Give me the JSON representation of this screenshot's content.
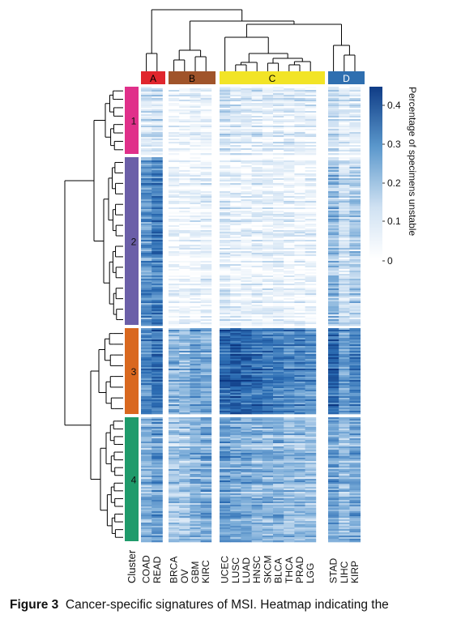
{
  "figure": {
    "caption_label": "Figure 3",
    "caption_text": "Cancer-specific signatures of MSI. Heatmap indicating the"
  },
  "groups": [
    {
      "label": "A",
      "color": "#e0262d"
    },
    {
      "label": "B",
      "color": "#a0542a"
    },
    {
      "label": "C",
      "color": "#f2e426"
    },
    {
      "label": "D",
      "color": "#2f6fb0"
    }
  ],
  "clusters": [
    {
      "label": "1",
      "color": "#e0308a"
    },
    {
      "label": "2",
      "color": "#6b5fa8"
    },
    {
      "label": "3",
      "color": "#d9681f"
    },
    {
      "label": "4",
      "color": "#1f9b6b"
    }
  ],
  "columns": [
    "COAD",
    "READ",
    "BRCA",
    "OV",
    "GBM",
    "KIRC",
    "UCEC",
    "LUSC",
    "LUAD",
    "HNSC",
    "SKCM",
    "BLCA",
    "THCA",
    "PRAD",
    "LGG",
    "STAD",
    "LIHC",
    "KIRP"
  ],
  "row_header": "Cluster",
  "colorbar": {
    "title": "Percentage of specimens unstable",
    "ticks": [
      "0.4",
      "0.3",
      "0.2",
      "0.1",
      "0"
    ],
    "low_color": "#ffffff",
    "high_color": "#0f3c86"
  },
  "chart_data": {
    "type": "heatmap",
    "title": "",
    "xlabel": "",
    "ylabel": "Cluster",
    "value_label": "Percentage of specimens unstable",
    "value_range": [
      0,
      0.45
    ],
    "columns": [
      "COAD",
      "READ",
      "BRCA",
      "OV",
      "GBM",
      "KIRC",
      "UCEC",
      "LUSC",
      "LUAD",
      "HNSC",
      "SKCM",
      "BLCA",
      "THCA",
      "PRAD",
      "LGG",
      "STAD",
      "LIHC",
      "KIRP"
    ],
    "column_groups": {
      "A": [
        "COAD",
        "READ"
      ],
      "B": [
        "BRCA",
        "OV",
        "GBM",
        "KIRC"
      ],
      "C": [
        "UCEC",
        "LUSC",
        "LUAD",
        "HNSC",
        "SKCM",
        "BLCA",
        "THCA",
        "PRAD",
        "LGG"
      ],
      "D": [
        "STAD",
        "LIHC",
        "KIRP"
      ]
    },
    "row_clusters": [
      "1",
      "2",
      "3",
      "4"
    ],
    "mean_values_by_cluster": {
      "1": [
        0.08,
        0.1,
        0.03,
        0.03,
        0.04,
        0.04,
        0.1,
        0.07,
        0.07,
        0.07,
        0.06,
        0.06,
        0.06,
        0.06,
        0.05,
        0.12,
        0.06,
        0.08
      ],
      "2": [
        0.26,
        0.3,
        0.02,
        0.02,
        0.03,
        0.04,
        0.06,
        0.04,
        0.04,
        0.04,
        0.04,
        0.04,
        0.03,
        0.03,
        0.03,
        0.18,
        0.1,
        0.14
      ],
      "3": [
        0.3,
        0.34,
        0.22,
        0.2,
        0.24,
        0.24,
        0.36,
        0.38,
        0.36,
        0.34,
        0.33,
        0.32,
        0.3,
        0.3,
        0.28,
        0.36,
        0.26,
        0.3
      ],
      "4": [
        0.2,
        0.24,
        0.16,
        0.16,
        0.2,
        0.22,
        0.24,
        0.22,
        0.22,
        0.2,
        0.2,
        0.2,
        0.18,
        0.18,
        0.18,
        0.24,
        0.18,
        0.22
      ]
    }
  }
}
